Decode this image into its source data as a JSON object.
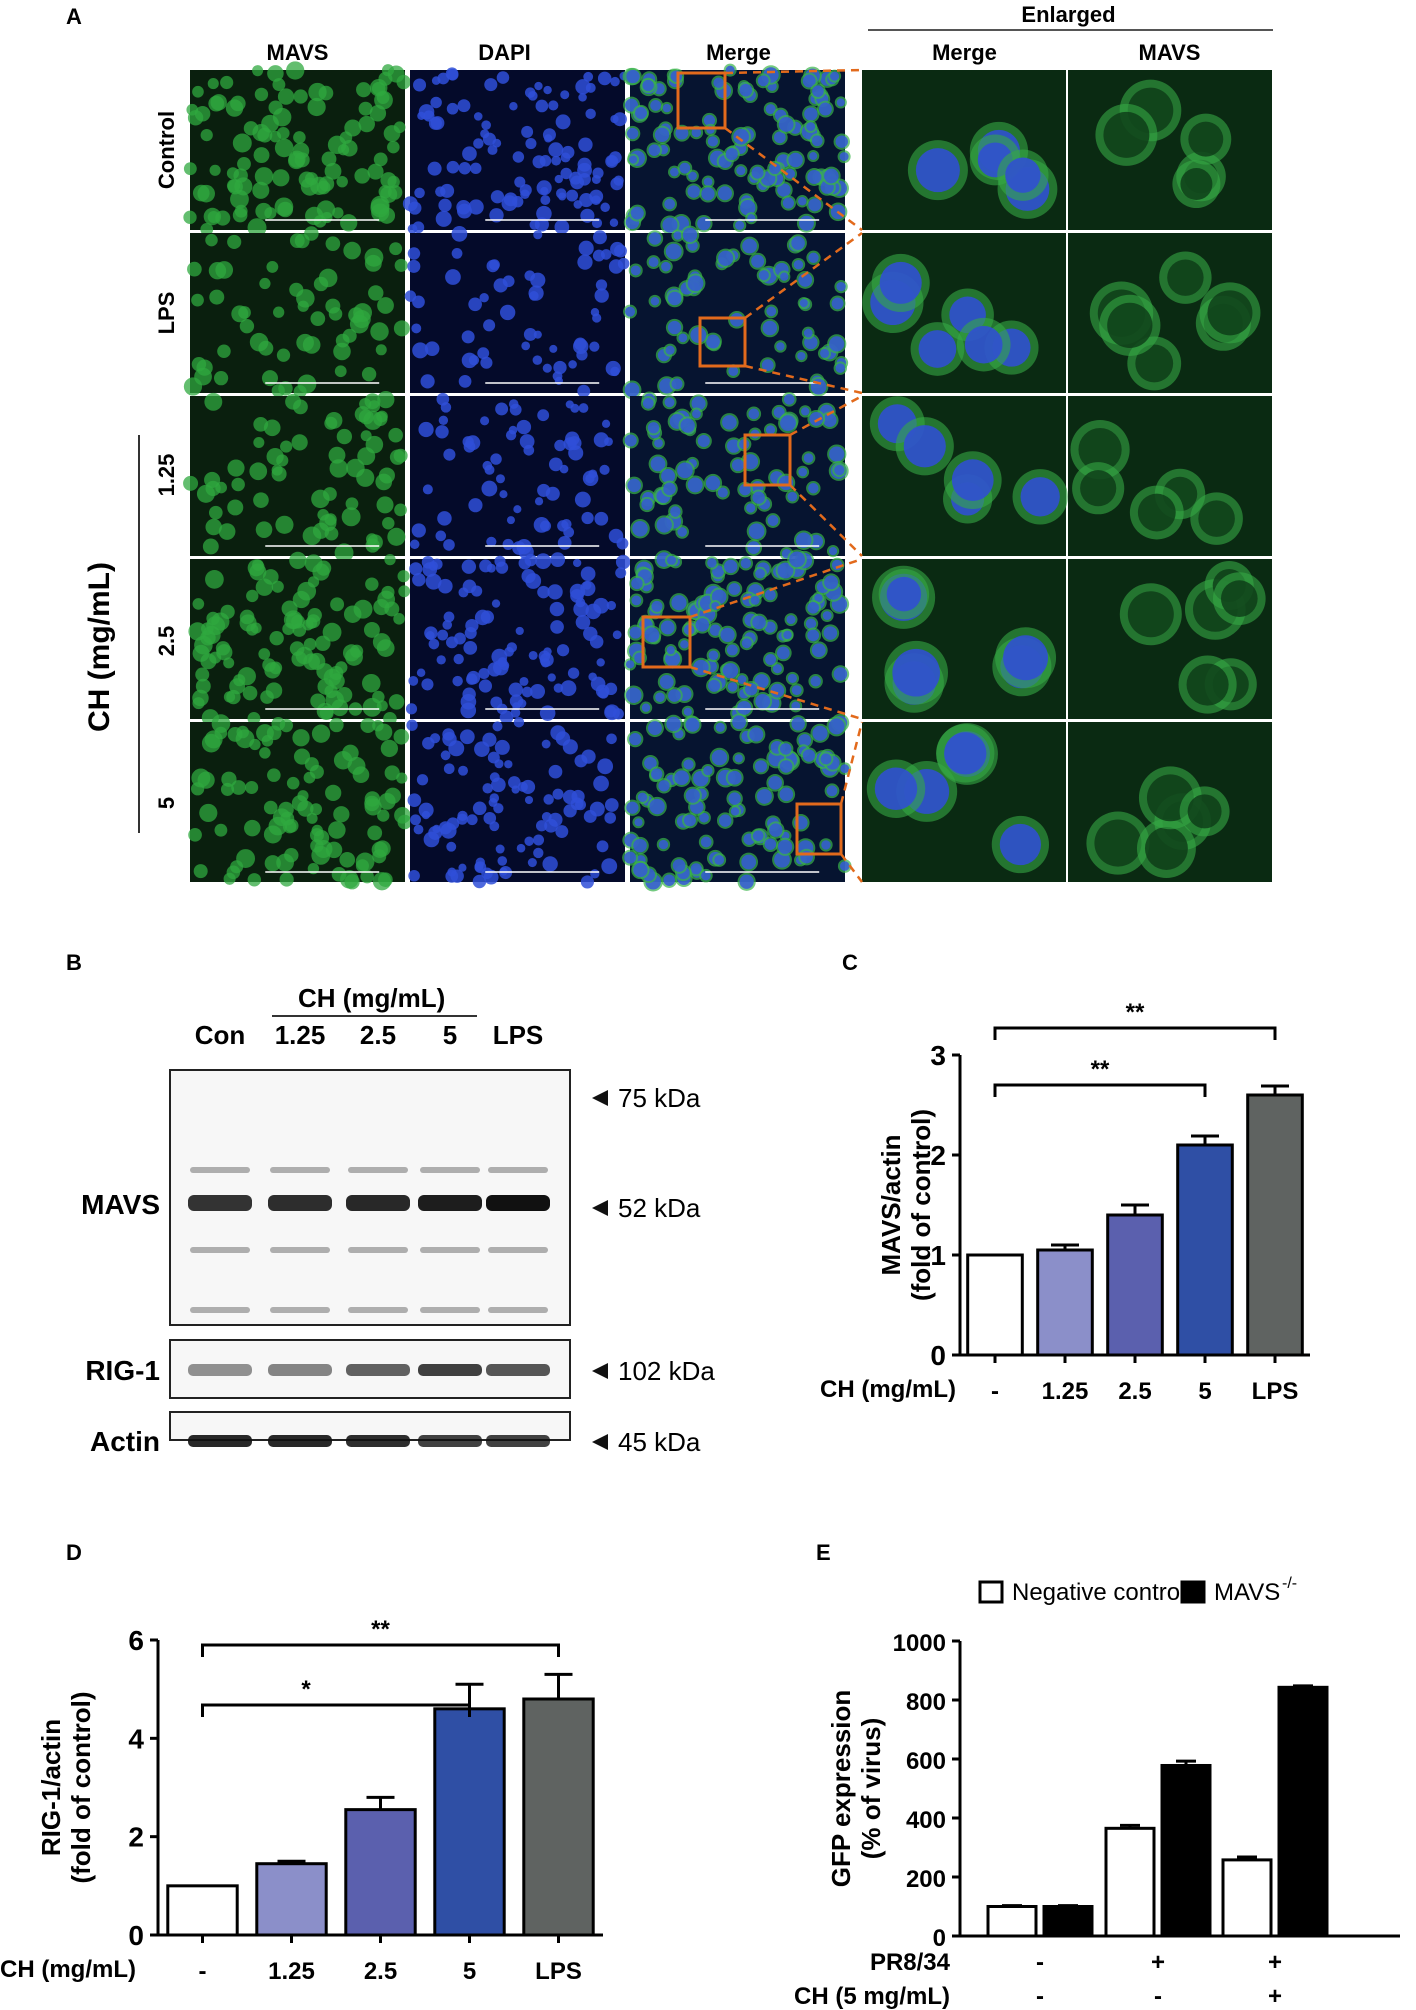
{
  "panel_a": {
    "label": "A",
    "col_headers": [
      "MAVS",
      "DAPI",
      "Merge"
    ],
    "enlarged": {
      "title": "Enlarged",
      "col_headers": [
        "Merge",
        "MAVS"
      ]
    },
    "rows": [
      "Control",
      "LPS",
      "1.25",
      "2.5",
      "5"
    ],
    "group_label": "CH (mg/mL)"
  },
  "panel_b": {
    "label": "B",
    "group_header": "CH (mg/mL)",
    "lanes": [
      "Con",
      "1.25",
      "2.5",
      "5",
      "LPS"
    ],
    "blots": [
      {
        "name": "MAVS",
        "markers": [
          "75 kDa",
          "52 kDa"
        ]
      },
      {
        "name": "RIG-1",
        "markers": [
          "102 kDa"
        ]
      },
      {
        "name": "Actin",
        "markers": [
          "45 kDa"
        ]
      }
    ],
    "band_intensity": {
      "MAVS": [
        0.85,
        0.88,
        0.9,
        0.95,
        1.0
      ],
      "RIG-1": [
        0.45,
        0.5,
        0.65,
        0.8,
        0.7
      ],
      "Actin": [
        0.9,
        0.9,
        0.88,
        0.8,
        0.8
      ]
    }
  },
  "chart_data": [
    {
      "panel": "C",
      "type": "bar",
      "xlabel": "CH (mg/mL)",
      "ylabel_line1": "MAVS/actin",
      "ylabel_line2": "(fold of control)",
      "categories": [
        "-",
        "1.25",
        "2.5",
        "5",
        "LPS"
      ],
      "values": [
        1.0,
        1.05,
        1.4,
        2.1,
        2.6
      ],
      "errors": [
        0.0,
        0.05,
        0.1,
        0.09,
        0.09
      ],
      "colors": [
        "#ffffff",
        "#8b8fc9",
        "#5b60ae",
        "#2f4fa5",
        "#5f6361"
      ],
      "ylim": [
        0,
        3
      ],
      "yticks": [
        "0",
        "1",
        "2",
        "3"
      ],
      "significance": [
        {
          "from": 0,
          "to": 3,
          "label": "**"
        },
        {
          "from": 0,
          "to": 4,
          "label": "**"
        }
      ]
    },
    {
      "panel": "D",
      "type": "bar",
      "xlabel": "CH (mg/mL)",
      "ylabel_line1": "RIG-1/actin",
      "ylabel_line2": "(fold of control)",
      "categories": [
        "-",
        "1.25",
        "2.5",
        "5",
        "LPS"
      ],
      "values": [
        1.0,
        1.45,
        2.55,
        4.6,
        4.8
      ],
      "errors": [
        0.0,
        0.05,
        0.25,
        0.5,
        0.5
      ],
      "colors": [
        "#ffffff",
        "#8b8fc9",
        "#5b60ae",
        "#2f4fa5",
        "#5f6361"
      ],
      "ylim": [
        0,
        6
      ],
      "yticks": [
        "0",
        "2",
        "4",
        "6"
      ],
      "significance": [
        {
          "from": 0,
          "to": 3,
          "label": "*"
        },
        {
          "from": 0,
          "to": 4,
          "label": "**"
        }
      ]
    },
    {
      "panel": "E",
      "type": "bar",
      "ylabel_line1": "GFP expression",
      "ylabel_line2": "(% of virus)",
      "series": [
        {
          "name": "Negative control",
          "values": [
            100,
            365,
            258
          ],
          "errors": [
            3,
            10,
            10
          ],
          "color": "#ffffff"
        },
        {
          "name": "MAVS",
          "superscript": "-/-",
          "values": [
            100,
            578,
            843
          ],
          "errors": [
            3,
            15,
            5
          ],
          "color": "#000000"
        }
      ],
      "ylim": [
        0,
        1000
      ],
      "yticks": [
        "0",
        "200",
        "400",
        "600",
        "800",
        "1000"
      ],
      "conditions": [
        {
          "label": "PR8/34",
          "values": [
            "-",
            "+",
            "+"
          ]
        },
        {
          "label": "CH (5 mg/mL)",
          "values": [
            "-",
            "-",
            "+"
          ]
        }
      ]
    }
  ]
}
